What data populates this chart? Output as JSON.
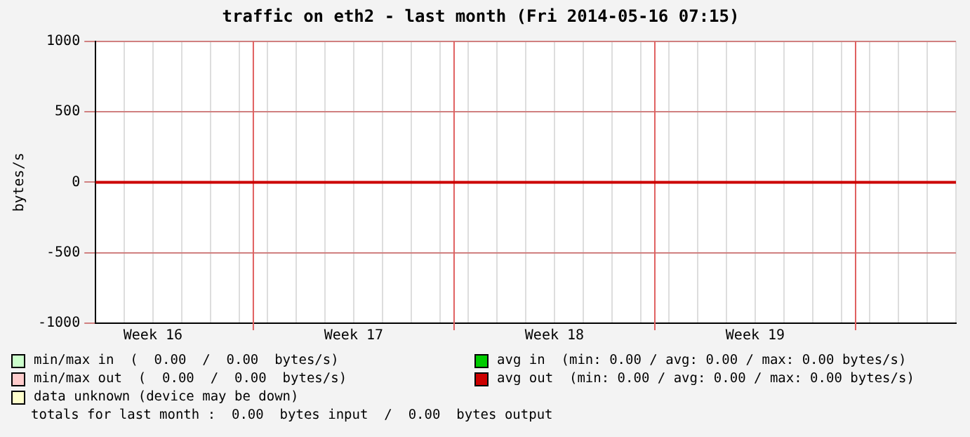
{
  "chart_data": {
    "type": "line",
    "title": "traffic on eth2 - last month (Fri 2014-05-16 07:15)",
    "ylabel": "bytes/s",
    "categories": [
      null,
      null,
      "Week 16",
      null,
      null,
      null,
      null,
      null,
      null,
      "Week 17",
      null,
      null,
      null,
      null,
      null,
      null,
      "Week 18",
      null,
      null,
      null,
      null,
      null,
      null,
      "Week 19",
      null,
      null,
      null,
      null,
      null,
      null,
      null
    ],
    "series": [
      {
        "name": "min/max in",
        "color": "#ccffcc",
        "values": [
          null,
          null,
          null,
          null,
          null,
          null,
          null,
          null,
          null,
          null,
          null,
          null,
          null,
          null,
          null,
          null,
          null,
          null,
          null,
          null,
          null,
          null,
          null,
          null,
          null,
          null,
          null,
          null,
          null,
          null,
          null
        ]
      },
      {
        "name": "avg in",
        "color": "#00cc00",
        "values": [
          null,
          null,
          null,
          null,
          null,
          null,
          null,
          null,
          null,
          null,
          null,
          null,
          null,
          null,
          null,
          null,
          null,
          null,
          null,
          null,
          null,
          null,
          null,
          null,
          null,
          null,
          null,
          null,
          null,
          null,
          null
        ]
      },
      {
        "name": "min/max out",
        "color": "#ffcccc",
        "values": [
          null,
          null,
          null,
          null,
          null,
          null,
          null,
          null,
          null,
          null,
          null,
          null,
          null,
          null,
          null,
          null,
          null,
          null,
          null,
          null,
          null,
          null,
          null,
          null,
          null,
          null,
          null,
          null,
          null,
          null,
          null
        ]
      },
      {
        "name": "avg out",
        "color": "#cc0000",
        "values": [
          0,
          0,
          0,
          0,
          0,
          0,
          0,
          0,
          0,
          0,
          0,
          0,
          0,
          0,
          0,
          0,
          0,
          0,
          0,
          0,
          0,
          0,
          0,
          0,
          0,
          0,
          0,
          0,
          0,
          0,
          0
        ]
      },
      {
        "name": "data unknown (device may be down)",
        "color": "#ffffcc",
        "values": [
          null,
          null,
          null,
          null,
          null,
          null,
          null,
          null,
          null,
          null,
          null,
          null,
          null,
          null,
          null,
          null,
          null,
          null,
          null,
          null,
          null,
          null,
          null,
          null,
          null,
          null,
          null,
          null,
          null,
          null,
          null
        ]
      }
    ],
    "annotations": [
      "(  0.00  /  0.00  bytes/s)",
      "(min: 0.00 / avg: 0.00 / max: 0.00 bytes/s)",
      "(  0.00  /  0.00  bytes/s)",
      "(min: 0.00 / avg: 0.00 / max: 0.00 bytes/s)",
      "totals for last month :  0.00  bytes input  /  0.00  bytes output"
    ],
    "ylim": [
      -1000,
      1000
    ],
    "yticks": [
      -1000,
      -500,
      0,
      500,
      1000
    ],
    "grid": true,
    "legend": "bottom",
    "marker": "none",
    "line_style": "solid"
  }
}
